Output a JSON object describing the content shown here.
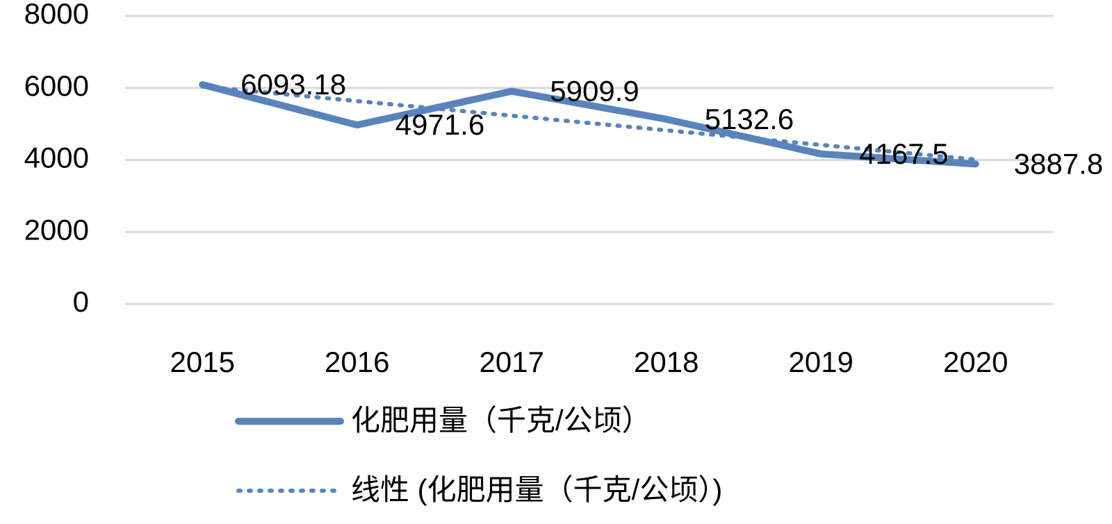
{
  "chart_data": {
    "type": "line",
    "categories": [
      "2015",
      "2016",
      "2017",
      "2018",
      "2019",
      "2020"
    ],
    "series": [
      {
        "name": "化肥用量（千克/公顷）",
        "color": "#5883bd",
        "style": "solid",
        "values": [
          6093.18,
          4971.6,
          5909.9,
          5132.6,
          4167.5,
          3887.8
        ],
        "data_labels": true
      },
      {
        "name": "线性 (化肥用量（千克/公顷）)",
        "color": "#5883bd",
        "style": "dotted",
        "values": [
          6043,
          5636,
          5230,
          4824,
          4418,
          4012
        ],
        "data_labels": false
      }
    ],
    "ylim": [
      0,
      8000
    ],
    "yticks": [
      0,
      2000,
      4000,
      6000,
      8000
    ],
    "grid": true,
    "legend": "bottom"
  }
}
